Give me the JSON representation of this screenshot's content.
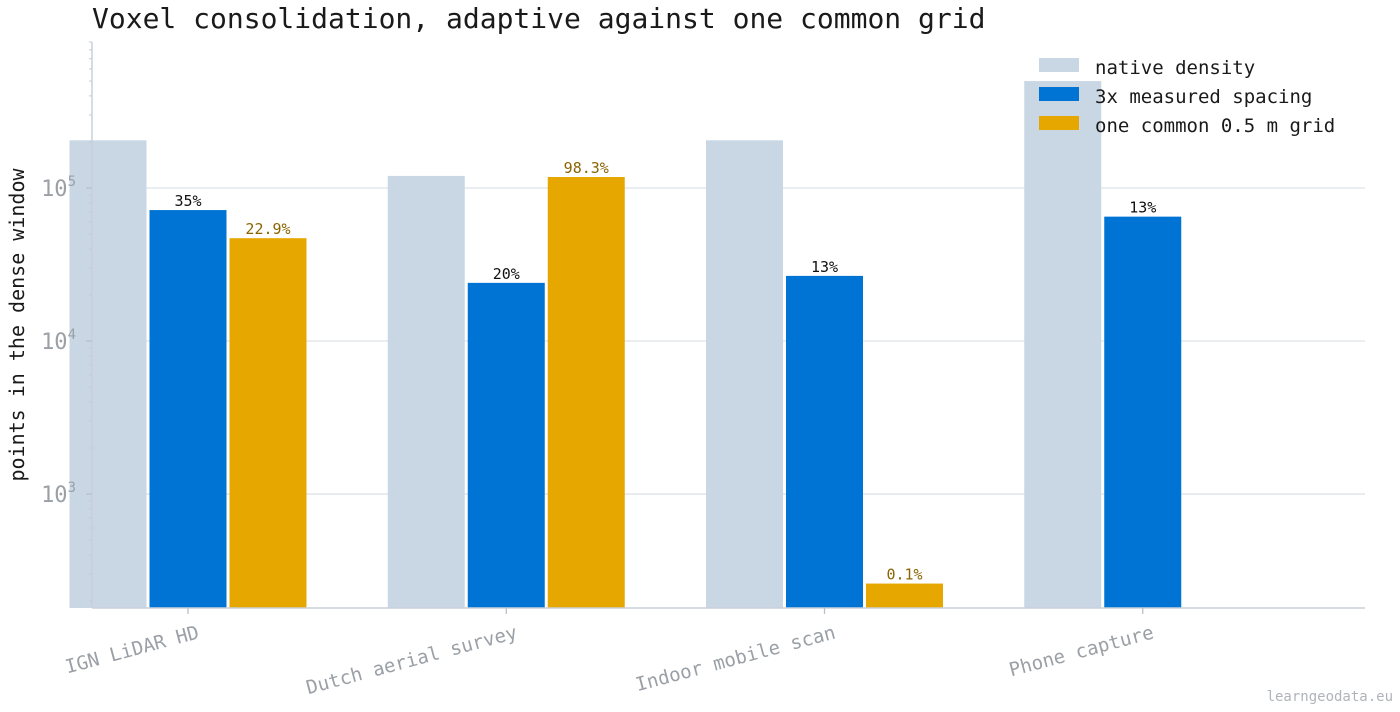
{
  "chart_data": {
    "type": "bar",
    "title": "Voxel consolidation, adaptive against one common grid",
    "ylabel": "points in the dense window",
    "xlabel": "",
    "yscale": "log",
    "ylim": [
      180,
      900000
    ],
    "ytick_labels": [
      {
        "value": 1000,
        "base": "10",
        "exp": "3"
      },
      {
        "value": 10000,
        "base": "10",
        "exp": "4"
      },
      {
        "value": 100000,
        "base": "10",
        "exp": "5"
      }
    ],
    "grid": "horizontal",
    "legend_position": "top-right",
    "categories": [
      "IGN LiDAR HD",
      "Dutch aerial survey",
      "Indoor mobile scan",
      "Phone capture"
    ],
    "series": [
      {
        "name": "native density",
        "color": "#c9d7e4",
        "values": [
          205000,
          120000,
          205000,
          500000
        ],
        "labels": [
          null,
          null,
          null,
          null
        ]
      },
      {
        "name": "3x measured spacing",
        "color": "#0074d4",
        "values": [
          71750,
          24000,
          26650,
          65000
        ],
        "labels": [
          "35%",
          "20%",
          "13%",
          "13%"
        ],
        "label_color": "#111111"
      },
      {
        "name": "one common 0.5 m grid",
        "color": "#e6a700",
        "values": [
          47000,
          118000,
          260,
          null
        ],
        "labels": [
          "22.9%",
          "98.3%",
          "0.1%",
          null
        ],
        "label_color": "#8a6400"
      }
    ]
  },
  "watermark": "learngeodata.eu"
}
